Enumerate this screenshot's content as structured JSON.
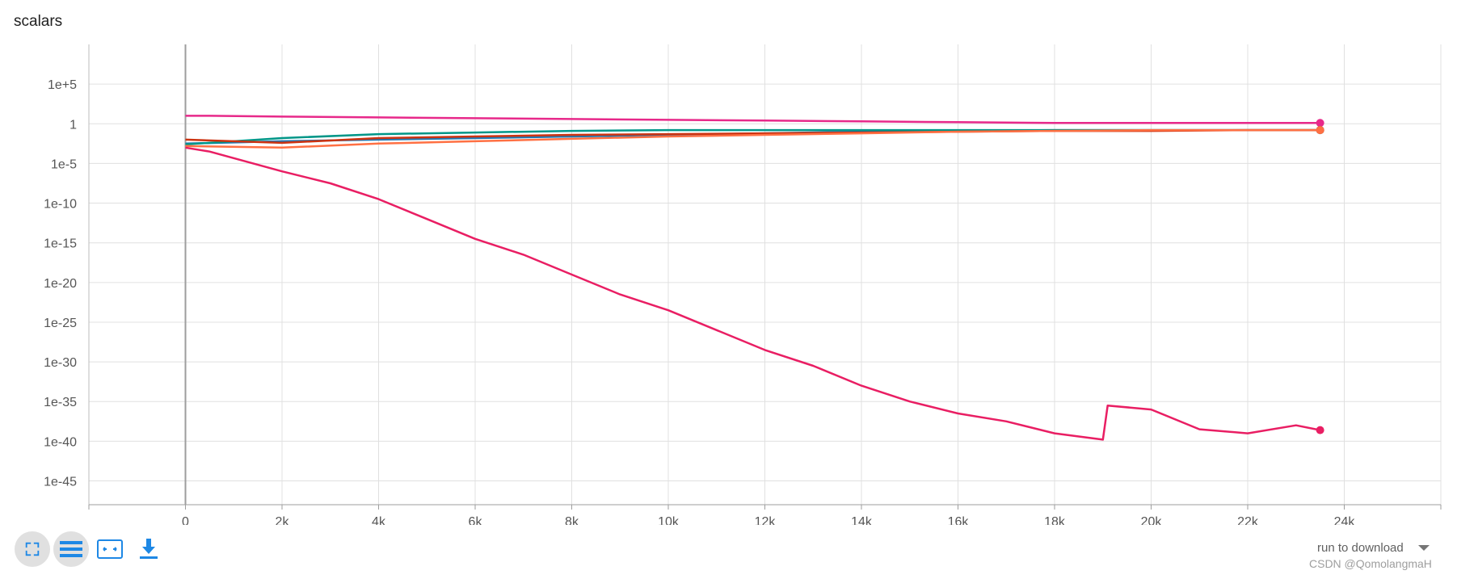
{
  "card": {
    "title": "scalars"
  },
  "toolbar": {
    "buttons": [
      {
        "icon": "fullscreen-icon"
      },
      {
        "icon": "data-list-icon"
      },
      {
        "icon": "fit-domain-icon"
      },
      {
        "icon": "download-icon"
      }
    ]
  },
  "run_select": {
    "label": "run to download"
  },
  "watermark": {
    "text": "CSDN @QomolangmaH"
  },
  "chart_data": {
    "type": "line",
    "title": "scalars",
    "xlabel": "",
    "ylabel": "",
    "yscale": "log",
    "xlim": [
      -2000,
      26000
    ],
    "ylim_exponent": [
      -48,
      10
    ],
    "x_ticks": [
      0,
      2000,
      4000,
      6000,
      8000,
      10000,
      12000,
      14000,
      16000,
      18000,
      20000,
      22000,
      24000
    ],
    "x_tick_labels": [
      "0",
      "2k",
      "4k",
      "6k",
      "8k",
      "10k",
      "12k",
      "14k",
      "16k",
      "18k",
      "20k",
      "22k",
      "24k"
    ],
    "y_ticks_exponent": [
      5,
      0,
      -5,
      -10,
      -15,
      -20,
      -25,
      -30,
      -35,
      -40,
      -45
    ],
    "y_tick_labels": [
      "1e+5",
      "1",
      "1e-5",
      "1e-10",
      "1e-15",
      "1e-20",
      "1e-25",
      "1e-30",
      "1e-35",
      "1e-40",
      "1e-45"
    ],
    "grid": true,
    "series": [
      {
        "color": "#e7298a",
        "x": [
          0,
          500,
          2000,
          4000,
          6000,
          8000,
          10000,
          12000,
          14000,
          16000,
          18000,
          20000,
          22000,
          23500
        ],
        "log10_y": [
          1.0,
          1.0,
          0.9,
          0.8,
          0.7,
          0.6,
          0.5,
          0.4,
          0.3,
          0.2,
          0.1,
          0.1,
          0.1,
          0.1
        ]
      },
      {
        "color": "#1f77b4",
        "x": [
          0,
          2000,
          4000,
          6000,
          8000,
          10000,
          12000,
          14000,
          16000,
          18000,
          20000,
          22000,
          23500
        ],
        "log10_y": [
          -2.5,
          -2.2,
          -2.0,
          -1.8,
          -1.6,
          -1.4,
          -1.2,
          -1.0,
          -0.9,
          -0.8,
          -0.8,
          -0.8,
          -0.8
        ]
      },
      {
        "color": "#009688",
        "x": [
          0,
          2000,
          4000,
          6000,
          8000,
          10000,
          12000,
          14000,
          16000,
          18000,
          20000,
          22000,
          23500
        ],
        "log10_y": [
          -2.6,
          -1.8,
          -1.3,
          -1.1,
          -0.9,
          -0.8,
          -0.8,
          -0.8,
          -0.8,
          -0.8,
          -0.8,
          -0.8,
          -0.8
        ]
      },
      {
        "color": "#cc3311",
        "x": [
          0,
          2000,
          4000,
          6000,
          8000,
          10000,
          12000,
          14000,
          16000,
          18000,
          20000,
          22000,
          23500
        ],
        "log10_y": [
          -2.0,
          -2.4,
          -1.8,
          -1.6,
          -1.4,
          -1.3,
          -1.2,
          -1.1,
          -1.0,
          -0.9,
          -0.9,
          -0.8,
          -0.8
        ]
      },
      {
        "color": "#ff7043",
        "x": [
          0,
          2000,
          4000,
          6000,
          8000,
          10000,
          12000,
          14000,
          16000,
          18000,
          20000,
          22000,
          23500
        ],
        "log10_y": [
          -2.8,
          -3.0,
          -2.5,
          -2.2,
          -1.9,
          -1.6,
          -1.4,
          -1.2,
          -1.0,
          -0.9,
          -0.8,
          -0.8,
          -0.8
        ]
      },
      {
        "color": "#e91e63",
        "x": [
          0,
          500,
          2000,
          3000,
          4000,
          5000,
          6000,
          7000,
          8000,
          9000,
          10000,
          11000,
          12000,
          13000,
          14000,
          15000,
          16000,
          17000,
          18000,
          19000,
          19100,
          20000,
          21000,
          22000,
          23000,
          23500
        ],
        "log10_y": [
          -3,
          -3.5,
          -6.0,
          -7.5,
          -9.5,
          -12.0,
          -14.5,
          -16.5,
          -19.0,
          -21.5,
          -23.5,
          -26.0,
          -28.5,
          -30.5,
          -33.0,
          -35.0,
          -36.5,
          -37.5,
          -39.0,
          -39.8,
          -35.5,
          -36.0,
          -38.5,
          -39.0,
          -38.0,
          -38.6
        ]
      }
    ]
  }
}
